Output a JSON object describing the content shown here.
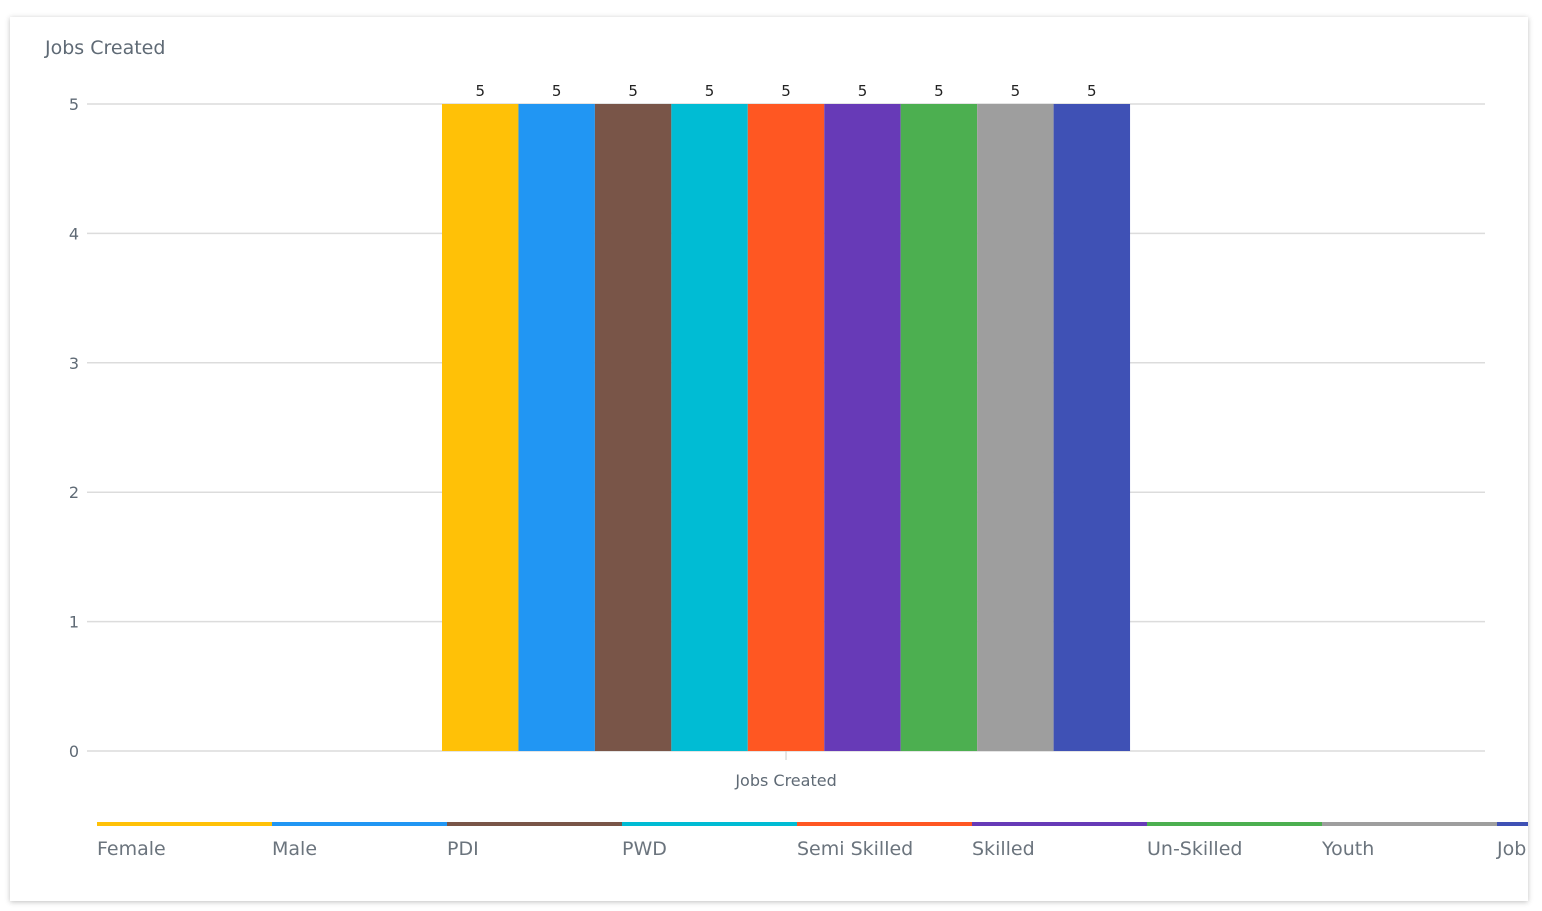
{
  "chart_data": {
    "type": "bar",
    "title": "Jobs Created",
    "categories": [
      "Jobs Created"
    ],
    "xlabel": "",
    "ylabel": "",
    "ylim": [
      0,
      5
    ],
    "yticks": [
      "0",
      "1",
      "2",
      "3",
      "4",
      "5"
    ],
    "grid": true,
    "legend_position": "bottom",
    "series": [
      {
        "name": "Female",
        "values": [
          5
        ],
        "color": "#ffc107"
      },
      {
        "name": "Male",
        "values": [
          5
        ],
        "color": "#2196f3"
      },
      {
        "name": "PDI",
        "values": [
          5
        ],
        "color": "#795548"
      },
      {
        "name": "PWD",
        "values": [
          5
        ],
        "color": "#00bcd4"
      },
      {
        "name": "Semi Skilled",
        "values": [
          5
        ],
        "color": "#ff5722"
      },
      {
        "name": "Skilled",
        "values": [
          5
        ],
        "color": "#673ab7"
      },
      {
        "name": "Un-Skilled",
        "values": [
          5
        ],
        "color": "#4caf50"
      },
      {
        "name": "Youth",
        "values": [
          5
        ],
        "color": "#9e9e9e"
      },
      {
        "name": "Job",
        "values": [
          5
        ],
        "color": "#3f51b5"
      }
    ]
  }
}
